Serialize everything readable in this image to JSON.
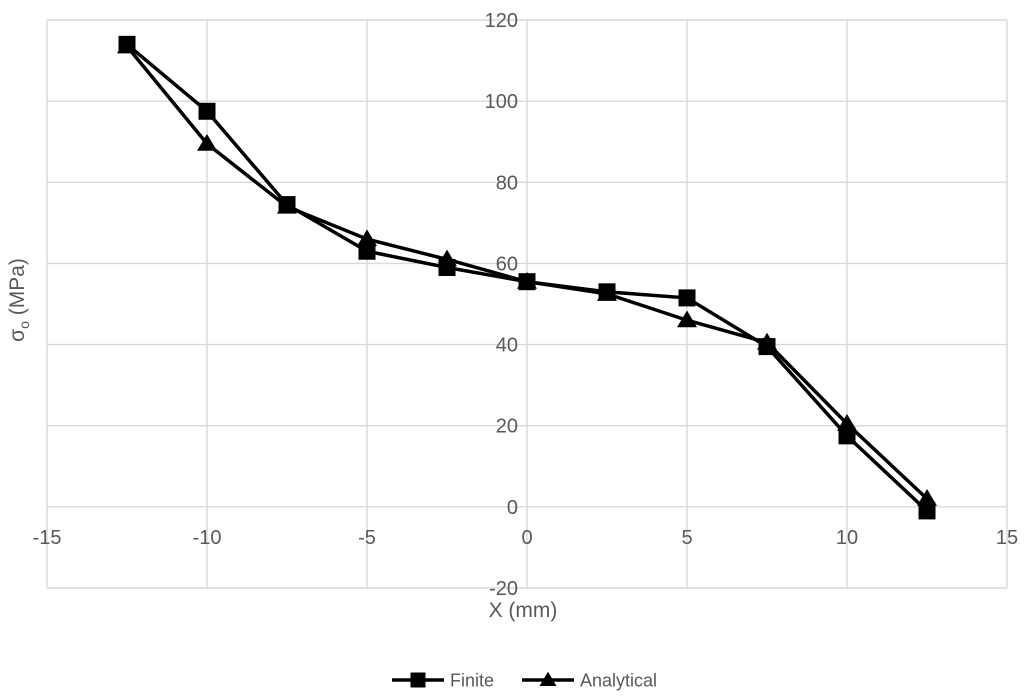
{
  "chart_data": {
    "type": "line",
    "xlabel": "X (mm)",
    "ylabel": "σo (MPa)",
    "ylabel_parts": {
      "base": "σ",
      "subscript": "o",
      "rest": " (MPa)"
    },
    "x": [
      -12.5,
      -10,
      -7.5,
      -5,
      -2.5,
      0,
      2.5,
      5,
      7.5,
      10,
      12.5
    ],
    "series": [
      {
        "name": "Finite",
        "marker": "square",
        "color": "#000000",
        "values": [
          114,
          97.5,
          74.5,
          63,
          59,
          55.5,
          53,
          51.5,
          39.5,
          17.5,
          -1
        ]
      },
      {
        "name": "Analytical",
        "marker": "triangle",
        "color": "#000000",
        "values": [
          113.5,
          89.5,
          74,
          66,
          61,
          55.5,
          52.5,
          46,
          40.5,
          20.5,
          2
        ]
      }
    ],
    "xlim": [
      -15,
      15
    ],
    "ylim": [
      -20,
      120
    ],
    "x_ticks": [
      -15,
      -10,
      -5,
      0,
      5,
      10,
      15
    ],
    "y_ticks": [
      -20,
      0,
      20,
      40,
      60,
      80,
      100,
      120
    ],
    "grid": true,
    "gridline_color": "#d9d9d9",
    "tick_label_color": "#595959",
    "axis_title_color": "#595959",
    "legend_position": "bottom",
    "legend_text_color": "#595959"
  }
}
